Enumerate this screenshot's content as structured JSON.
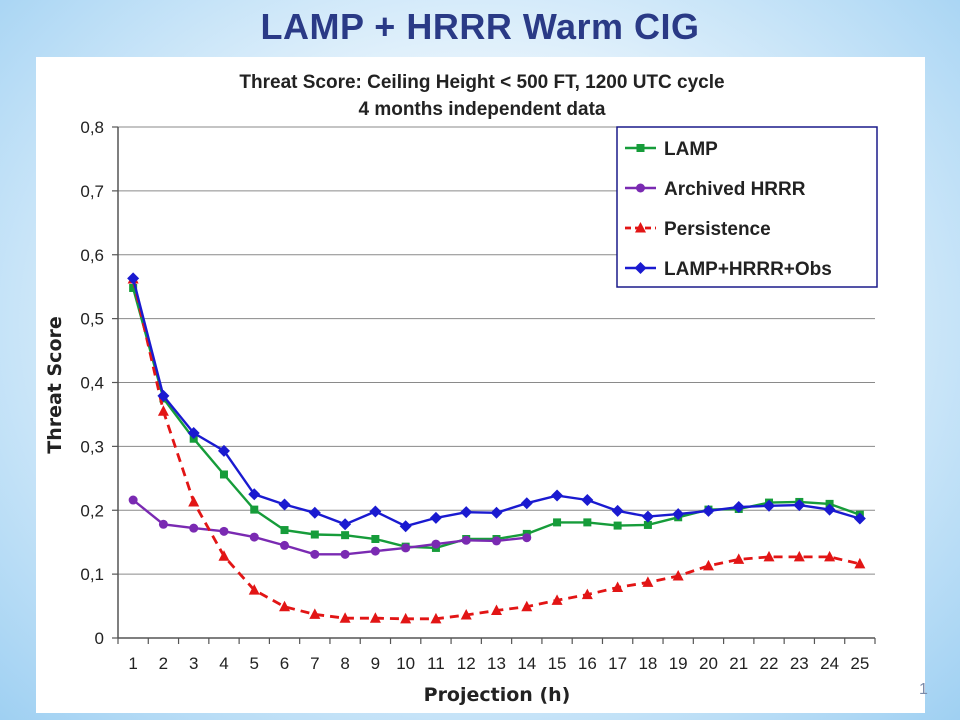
{
  "slide": {
    "title": "LAMP + HRRR Warm CIG",
    "page_number": "1"
  },
  "chart_data": {
    "type": "line",
    "title": "Threat Score: Ceiling Height < 500 FT, 1200 UTC cycle",
    "subtitle": "4 months independent data",
    "xlabel": "Projection (h)",
    "ylabel": "Threat Score",
    "x": [
      1,
      2,
      3,
      4,
      5,
      6,
      7,
      8,
      9,
      10,
      11,
      12,
      13,
      14,
      15,
      16,
      17,
      18,
      19,
      20,
      21,
      22,
      23,
      24,
      25
    ],
    "ylim": [
      0,
      0.8
    ],
    "yticks": [
      "0",
      "0,1",
      "0,2",
      "0,3",
      "0,4",
      "0,5",
      "0,6",
      "0,7",
      "0,8"
    ],
    "grid": true,
    "legend_position": "top-right",
    "series": [
      {
        "name": "LAMP",
        "color": "#169c3a",
        "marker": "square",
        "dash": false,
        "values": [
          0.548,
          0.375,
          0.312,
          0.256,
          0.201,
          0.169,
          0.162,
          0.161,
          0.155,
          0.143,
          0.141,
          0.155,
          0.155,
          0.163,
          0.181,
          0.181,
          0.176,
          0.177,
          0.189,
          0.201,
          0.202,
          0.212,
          0.213,
          0.21,
          0.193
        ]
      },
      {
        "name": "Archived HRRR",
        "color": "#7a2ab2",
        "marker": "circle",
        "dash": false,
        "values": [
          0.216,
          0.178,
          0.172,
          0.167,
          0.158,
          0.145,
          0.131,
          0.131,
          0.136,
          0.141,
          0.147,
          0.153,
          0.152,
          0.157,
          null,
          null,
          null,
          null,
          null,
          null,
          null,
          null,
          null,
          null,
          null
        ]
      },
      {
        "name": "Persistence",
        "color": "#e21515",
        "marker": "triangle",
        "dash": true,
        "values": [
          0.562,
          0.355,
          0.213,
          0.128,
          0.075,
          0.049,
          0.037,
          0.031,
          0.031,
          0.03,
          0.03,
          0.036,
          0.043,
          0.049,
          0.059,
          0.068,
          0.079,
          0.087,
          0.097,
          0.113,
          0.123,
          0.127,
          0.127,
          0.127,
          0.116
        ]
      },
      {
        "name": "LAMP+HRRR+Obs",
        "color": "#1a1ad0",
        "marker": "diamond",
        "dash": false,
        "values": [
          0.563,
          0.379,
          0.321,
          0.293,
          0.225,
          0.209,
          0.196,
          0.178,
          0.198,
          0.175,
          0.188,
          0.197,
          0.196,
          0.211,
          0.223,
          0.216,
          0.199,
          0.19,
          0.194,
          0.199,
          0.205,
          0.207,
          0.208,
          0.201,
          0.187
        ]
      }
    ]
  }
}
